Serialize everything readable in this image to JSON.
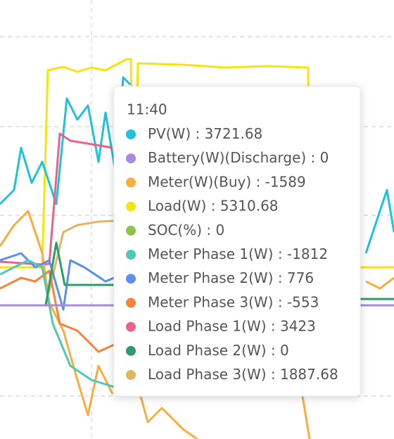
{
  "tooltip": {
    "time": "11:40",
    "separator": " : ",
    "items": [
      {
        "name": "PV(W)",
        "value": 3721.68,
        "color": "#1fc1dc"
      },
      {
        "name": "Battery(W)(Discharge)",
        "value": 0,
        "color": "#a98ae3"
      },
      {
        "name": "Meter(W)(Buy)",
        "value": -1589,
        "color": "#f9ad3d"
      },
      {
        "name": "Load(W)",
        "value": 5310.68,
        "color": "#f4e60c"
      },
      {
        "name": "SOC(%)",
        "value": 0,
        "color": "#8dc44b"
      },
      {
        "name": "Meter Phase 1(W)",
        "value": -1812,
        "color": "#4fc9b2"
      },
      {
        "name": "Meter Phase 2(W)",
        "value": 776,
        "color": "#5c8df0"
      },
      {
        "name": "Meter Phase 3(W)",
        "value": -553,
        "color": "#f7823b"
      },
      {
        "name": "Load Phase 1(W)",
        "value": 3423,
        "color": "#e8628b"
      },
      {
        "name": "Load Phase 2(W)",
        "value": 0,
        "color": "#2f9a6b"
      },
      {
        "name": "Load Phase 3(W)",
        "value": 1887.68,
        "color": "#e1b562"
      }
    ]
  }
}
